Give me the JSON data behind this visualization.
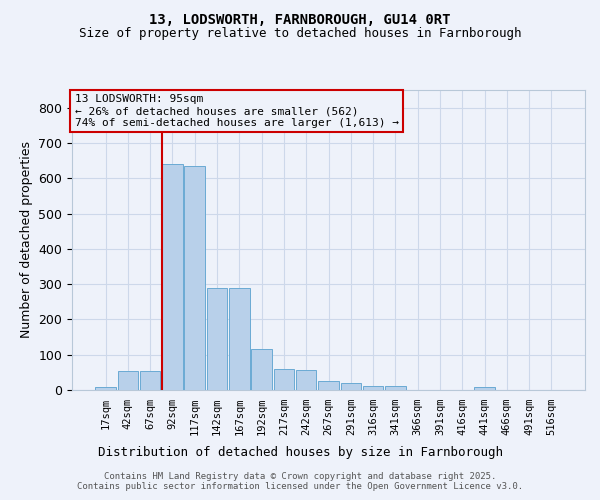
{
  "title_line1": "13, LODSWORTH, FARNBOROUGH, GU14 0RT",
  "title_line2": "Size of property relative to detached houses in Farnborough",
  "xlabel": "Distribution of detached houses by size in Farnborough",
  "ylabel": "Number of detached properties",
  "bar_color": "#b8d0ea",
  "bar_edge_color": "#6aaad4",
  "grid_color": "#cdd8ea",
  "vline_color": "#cc0000",
  "background_color": "#eef2fa",
  "bins": [
    "17sqm",
    "42sqm",
    "67sqm",
    "92sqm",
    "117sqm",
    "142sqm",
    "167sqm",
    "192sqm",
    "217sqm",
    "242sqm",
    "267sqm",
    "291sqm",
    "316sqm",
    "341sqm",
    "366sqm",
    "391sqm",
    "416sqm",
    "441sqm",
    "466sqm",
    "491sqm",
    "516sqm"
  ],
  "values": [
    8,
    55,
    55,
    640,
    635,
    290,
    290,
    115,
    60,
    58,
    25,
    20,
    10,
    10,
    0,
    0,
    0,
    8,
    0,
    0,
    0
  ],
  "ylim": [
    0,
    850
  ],
  "yticks": [
    0,
    100,
    200,
    300,
    400,
    500,
    600,
    700,
    800
  ],
  "vline_bin_index": 3,
  "annotation_text": "13 LODSWORTH: 95sqm\n← 26% of detached houses are smaller (562)\n74% of semi-detached houses are larger (1,613) →",
  "footer_line1": "Contains HM Land Registry data © Crown copyright and database right 2025.",
  "footer_line2": "Contains public sector information licensed under the Open Government Licence v3.0.",
  "title_fontsize": 10,
  "subtitle_fontsize": 9,
  "ylabel_fontsize": 9,
  "xlabel_fontsize": 9,
  "tick_fontsize": 7.5,
  "annotation_fontsize": 8,
  "footer_fontsize": 6.5
}
